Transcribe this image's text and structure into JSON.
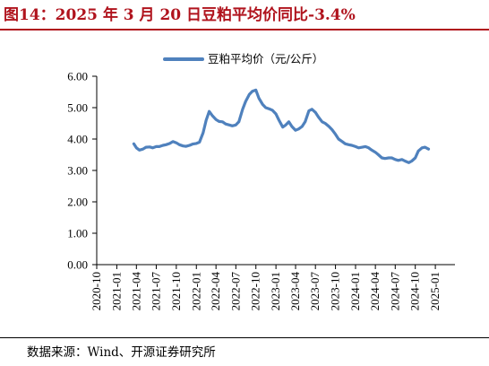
{
  "title": "图14：2025 年 3 月 20 日豆粕平均价同比-3.4%",
  "source": "数据来源：Wind、开源证券研究所",
  "colors": {
    "title": "#b0131d",
    "series": "#4f81bd"
  },
  "chart_data": {
    "type": "line",
    "title": "",
    "xlabel": "",
    "ylabel": "",
    "ylim": [
      0,
      6
    ],
    "yticks": [
      "0.00",
      "1.00",
      "2.00",
      "3.00",
      "4.00",
      "5.00",
      "6.00"
    ],
    "xlim": [
      "2020-10",
      "2025-04"
    ],
    "xticks": [
      "2020-10",
      "2021-01",
      "2021-04",
      "2021-07",
      "2021-10",
      "2022-01",
      "2022-04",
      "2022-07",
      "2022-10",
      "2023-01",
      "2023-04",
      "2023-07",
      "2023-10",
      "2024-01",
      "2024-04",
      "2024-07",
      "2024-10",
      "2025-01"
    ],
    "grid": false,
    "legend": "top-center",
    "series": [
      {
        "name": "豆粕平均价（元/公斤）",
        "points": [
          [
            "2021-03-20",
            3.85
          ],
          [
            "2021-04-01",
            3.72
          ],
          [
            "2021-04-15",
            3.65
          ],
          [
            "2021-05-01",
            3.68
          ],
          [
            "2021-05-15",
            3.74
          ],
          [
            "2021-06-01",
            3.75
          ],
          [
            "2021-06-15",
            3.72
          ],
          [
            "2021-07-01",
            3.76
          ],
          [
            "2021-07-15",
            3.76
          ],
          [
            "2021-08-01",
            3.8
          ],
          [
            "2021-08-15",
            3.82
          ],
          [
            "2021-09-01",
            3.86
          ],
          [
            "2021-09-15",
            3.92
          ],
          [
            "2021-10-01",
            3.88
          ],
          [
            "2021-10-15",
            3.82
          ],
          [
            "2021-11-01",
            3.78
          ],
          [
            "2021-11-15",
            3.77
          ],
          [
            "2021-12-01",
            3.8
          ],
          [
            "2021-12-15",
            3.84
          ],
          [
            "2022-01-01",
            3.86
          ],
          [
            "2022-01-15",
            3.9
          ],
          [
            "2022-02-01",
            4.2
          ],
          [
            "2022-02-15",
            4.6
          ],
          [
            "2022-03-01",
            4.88
          ],
          [
            "2022-03-15",
            4.75
          ],
          [
            "2022-04-01",
            4.62
          ],
          [
            "2022-04-15",
            4.56
          ],
          [
            "2022-05-01",
            4.55
          ],
          [
            "2022-05-15",
            4.48
          ],
          [
            "2022-06-01",
            4.45
          ],
          [
            "2022-06-15",
            4.42
          ],
          [
            "2022-07-01",
            4.45
          ],
          [
            "2022-07-15",
            4.55
          ],
          [
            "2022-08-01",
            4.95
          ],
          [
            "2022-08-15",
            5.2
          ],
          [
            "2022-09-01",
            5.42
          ],
          [
            "2022-09-15",
            5.52
          ],
          [
            "2022-10-01",
            5.56
          ],
          [
            "2022-10-15",
            5.3
          ],
          [
            "2022-11-01",
            5.1
          ],
          [
            "2022-11-15",
            5.0
          ],
          [
            "2022-12-01",
            4.96
          ],
          [
            "2022-12-15",
            4.92
          ],
          [
            "2023-01-01",
            4.8
          ],
          [
            "2023-01-15",
            4.6
          ],
          [
            "2023-02-01",
            4.38
          ],
          [
            "2023-02-15",
            4.45
          ],
          [
            "2023-03-01",
            4.55
          ],
          [
            "2023-03-15",
            4.4
          ],
          [
            "2023-04-01",
            4.28
          ],
          [
            "2023-04-15",
            4.32
          ],
          [
            "2023-05-01",
            4.4
          ],
          [
            "2023-05-15",
            4.55
          ],
          [
            "2023-06-01",
            4.9
          ],
          [
            "2023-06-15",
            4.95
          ],
          [
            "2023-07-01",
            4.85
          ],
          [
            "2023-07-15",
            4.7
          ],
          [
            "2023-08-01",
            4.55
          ],
          [
            "2023-08-15",
            4.5
          ],
          [
            "2023-09-01",
            4.4
          ],
          [
            "2023-09-15",
            4.3
          ],
          [
            "2023-10-01",
            4.15
          ],
          [
            "2023-10-15",
            4.0
          ],
          [
            "2023-11-01",
            3.92
          ],
          [
            "2023-11-15",
            3.85
          ],
          [
            "2023-12-01",
            3.82
          ],
          [
            "2023-12-15",
            3.8
          ],
          [
            "2024-01-01",
            3.76
          ],
          [
            "2024-01-15",
            3.72
          ],
          [
            "2024-02-01",
            3.74
          ],
          [
            "2024-02-15",
            3.76
          ],
          [
            "2024-03-01",
            3.72
          ],
          [
            "2024-03-15",
            3.65
          ],
          [
            "2024-04-01",
            3.58
          ],
          [
            "2024-04-15",
            3.5
          ],
          [
            "2024-05-01",
            3.4
          ],
          [
            "2024-05-15",
            3.38
          ],
          [
            "2024-06-01",
            3.4
          ],
          [
            "2024-06-15",
            3.4
          ],
          [
            "2024-07-01",
            3.35
          ],
          [
            "2024-07-15",
            3.32
          ],
          [
            "2024-08-01",
            3.35
          ],
          [
            "2024-08-15",
            3.3
          ],
          [
            "2024-09-01",
            3.25
          ],
          [
            "2024-09-15",
            3.3
          ],
          [
            "2024-10-01",
            3.4
          ],
          [
            "2024-10-15",
            3.62
          ],
          [
            "2024-11-01",
            3.72
          ],
          [
            "2024-11-15",
            3.74
          ],
          [
            "2024-12-01",
            3.68
          ]
        ]
      }
    ]
  }
}
